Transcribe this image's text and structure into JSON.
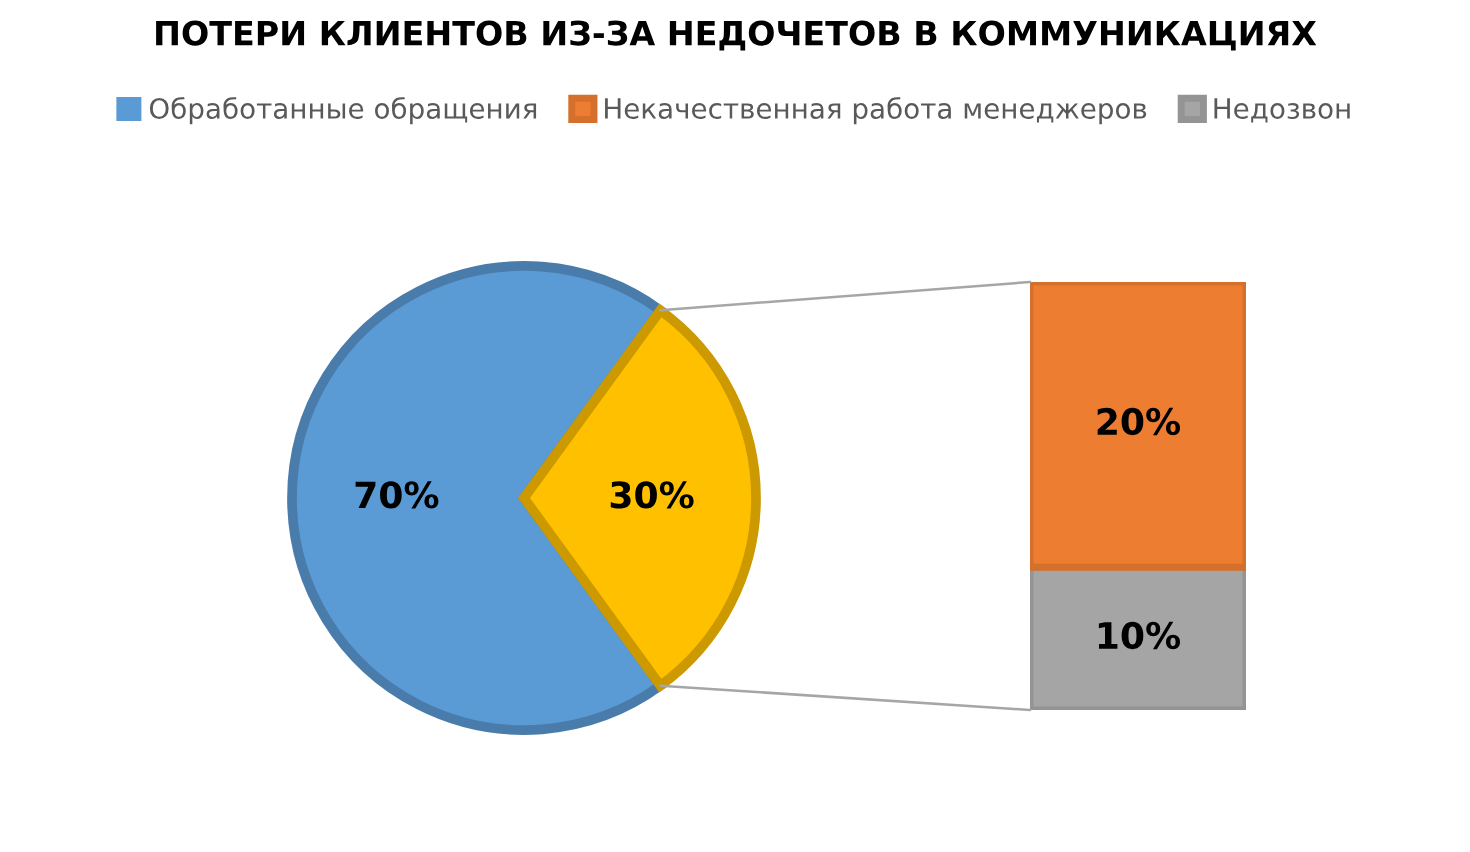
{
  "chart_data": [
    {
      "type": "pie",
      "title": "ПОТЕРИ КЛИЕНТОВ ИЗ-ЗА НЕДОЧЕТОВ В КОММУНИКАЦИЯХ",
      "legend": "top",
      "categories": [
        "Обработанные обращения",
        null
      ],
      "values": [
        70,
        30
      ],
      "colors": [
        "#5b9bd5",
        "#ffc000"
      ],
      "value_labels": [
        "70%",
        "30%"
      ]
    },
    {
      "type": "bar",
      "stacked": true,
      "legend": "top",
      "categories": [
        null
      ],
      "series": [
        {
          "name": "Недозвон",
          "color": "#a5a5a5",
          "values": [
            10
          ],
          "value_labels": [
            "10%"
          ]
        },
        {
          "name": "Некачественная работа менеджеров",
          "color": "#ed7d31",
          "values": [
            20
          ],
          "value_labels": [
            "20%"
          ]
        }
      ]
    }
  ]
}
